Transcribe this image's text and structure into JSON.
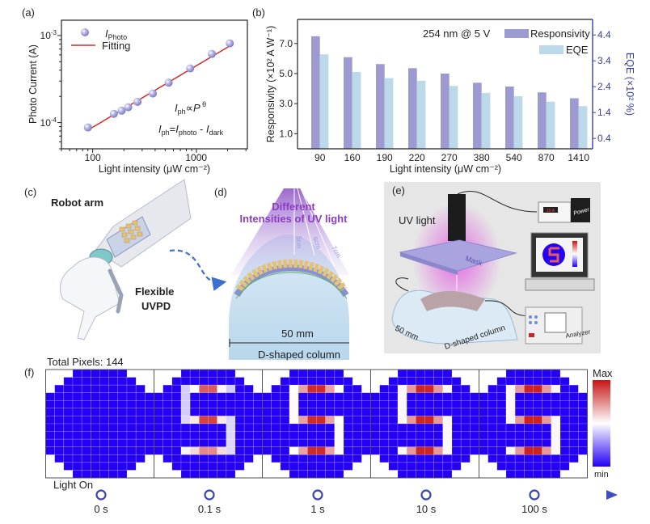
{
  "panel_labels": {
    "a": "(a)",
    "b": "(b)",
    "c": "(c)",
    "d": "(d)",
    "e": "(e)",
    "f": "(f)"
  },
  "colors": {
    "photo_marker": "#a9a6dc",
    "fit_line": "#d42a2a",
    "responsivity_bar": "#9d99d1",
    "eqe_bar": "#bcd9e9",
    "eqe_axis": "#3b3f9f",
    "heat_min": "#2400f5",
    "heat_mid": "#ffffff",
    "heat_max": "#c81414",
    "timeline": "#3b4fc0"
  },
  "chart_data": [
    {
      "id": "a",
      "type": "scatter",
      "xscale": "log",
      "yscale": "log",
      "xlabel": "Light intensity (μW cm⁻²)",
      "ylabel": "Photo Current (A)",
      "xlim": [
        50,
        3100
      ],
      "ylim": [
        5e-05,
        0.0015
      ],
      "x_ticks": [
        {
          "value": 100,
          "label": "100"
        },
        {
          "value": 1000,
          "label": "1000"
        }
      ],
      "y_ticks": [
        {
          "value": 0.001,
          "base": "10",
          "exp": "-3"
        },
        {
          "value": 0.0001,
          "base": "10",
          "exp": "-4"
        }
      ],
      "legend": {
        "position": "top-left",
        "photo": {
          "main": "I",
          "sub": "Photo"
        },
        "fit": "Fitting"
      },
      "series": [
        {
          "name": "IPhoto",
          "x": [
            90,
            160,
            190,
            220,
            270,
            380,
            540,
            870,
            1410,
            2100
          ],
          "y": [
            8.8e-05,
            0.000126,
            0.000137,
            0.00015,
            0.000173,
            0.000216,
            0.000287,
            0.000419,
            0.000615,
            0.000813
          ]
        },
        {
          "name": "Fitting",
          "x": [
            90,
            2100
          ],
          "y": [
            8.2e-05,
            0.00076
          ]
        }
      ],
      "annotations": {
        "power_law": [
          {
            "t": "I",
            "s": "n"
          },
          {
            "t": "ph",
            "s": "sub"
          },
          {
            "t": "∝",
            "s": "n"
          },
          {
            "t": "P",
            "s": "i"
          },
          {
            "t": " θ",
            "s": "sup"
          }
        ],
        "definition": [
          {
            "t": "I",
            "s": "i"
          },
          {
            "t": "ph",
            "s": "sub"
          },
          {
            "t": "=",
            "s": "n"
          },
          {
            "t": "I",
            "s": "i"
          },
          {
            "t": "photo",
            "s": "sub"
          },
          {
            "t": " - ",
            "s": "n"
          },
          {
            "t": "I",
            "s": "i"
          },
          {
            "t": "dark",
            "s": "sub"
          }
        ]
      },
      "grid": false
    },
    {
      "id": "b",
      "type": "bar",
      "categories": [
        "90",
        "160",
        "190",
        "220",
        "270",
        "380",
        "540",
        "870",
        "1410"
      ],
      "xlabel": "Light intensity (μW cm⁻²)",
      "ylabel": "Responsivity (×10² A W⁻¹)",
      "ylabel_right": "EQE (×10² %)",
      "ylim": [
        0,
        8.6
      ],
      "ylim_right": [
        0,
        5.0
      ],
      "y_ticks": [
        "1.0",
        "3.0",
        "5.0",
        "7.0"
      ],
      "y_ticks_right": [
        "0.4",
        "1.4",
        "2.4",
        "3.4",
        "4.4"
      ],
      "condition_label": "254 nm @ 5 V",
      "legend_position": "top-right",
      "series": [
        {
          "name": "Responsivity",
          "axis": "left",
          "values": [
            7.48,
            6.09,
            5.63,
            5.36,
            5.0,
            4.39,
            4.14,
            3.75,
            3.36
          ]
        },
        {
          "name": "EQE",
          "axis": "right",
          "values": [
            3.65,
            2.97,
            2.73,
            2.63,
            2.43,
            2.16,
            2.03,
            1.82,
            1.65
          ]
        }
      ],
      "grid": false
    },
    {
      "id": "f",
      "type": "heatmap",
      "title": "Total Pixels: 144",
      "columns": 12,
      "active_columns_per_row": [
        6,
        8,
        10,
        12,
        12,
        12,
        12,
        12,
        12,
        12,
        12,
        10,
        8,
        6
      ],
      "colorbar": {
        "max_label": "Max",
        "min_label": "min",
        "range": [
          0,
          1
        ]
      },
      "default_value": 0,
      "frames": [
        {
          "label": "0 s",
          "cells": []
        },
        {
          "label": "0.1 s",
          "cells": [
            [
              2,
              3,
              0.4
            ],
            [
              2,
              4,
              0.5
            ],
            [
              2,
              5,
              0.85
            ],
            [
              2,
              6,
              0.85
            ],
            [
              2,
              7,
              0.52
            ],
            [
              2,
              8,
              0.4
            ],
            [
              3,
              3,
              0.4
            ],
            [
              4,
              3,
              0.4
            ],
            [
              5,
              3,
              0.4
            ],
            [
              6,
              3,
              0.42
            ],
            [
              6,
              4,
              0.55
            ],
            [
              6,
              5,
              0.9
            ],
            [
              6,
              6,
              0.9
            ],
            [
              6,
              7,
              0.55
            ],
            [
              6,
              8,
              0.42
            ],
            [
              7,
              8,
              0.42
            ],
            [
              8,
              8,
              0.42
            ],
            [
              9,
              8,
              0.42
            ],
            [
              10,
              3,
              0.48
            ],
            [
              10,
              4,
              0.58
            ],
            [
              10,
              5,
              0.75
            ],
            [
              10,
              6,
              0.75
            ],
            [
              10,
              7,
              0.58
            ],
            [
              10,
              8,
              0.42
            ]
          ]
        },
        {
          "label": "1 s",
          "cells": [
            [
              2,
              3,
              0.5
            ],
            [
              2,
              4,
              0.7
            ],
            [
              2,
              5,
              0.95
            ],
            [
              2,
              6,
              0.95
            ],
            [
              2,
              7,
              0.7
            ],
            [
              2,
              8,
              0.5
            ],
            [
              3,
              3,
              0.51
            ],
            [
              4,
              3,
              0.51
            ],
            [
              5,
              3,
              0.51
            ],
            [
              6,
              3,
              0.51
            ],
            [
              6,
              4,
              0.7
            ],
            [
              6,
              5,
              0.95
            ],
            [
              6,
              6,
              0.95
            ],
            [
              6,
              7,
              0.7
            ],
            [
              6,
              8,
              0.5
            ],
            [
              7,
              8,
              0.51
            ],
            [
              8,
              8,
              0.51
            ],
            [
              9,
              8,
              0.51
            ],
            [
              10,
              3,
              0.5
            ],
            [
              10,
              4,
              0.7
            ],
            [
              10,
              5,
              0.95
            ],
            [
              10,
              6,
              0.95
            ],
            [
              10,
              7,
              0.7
            ],
            [
              10,
              8,
              0.51
            ]
          ]
        },
        {
          "label": "10 s",
          "cells": [
            [
              2,
              3,
              0.52
            ],
            [
              2,
              4,
              0.72
            ],
            [
              2,
              5,
              0.96
            ],
            [
              2,
              6,
              0.96
            ],
            [
              2,
              7,
              0.72
            ],
            [
              2,
              8,
              0.52
            ],
            [
              3,
              3,
              0.52
            ],
            [
              4,
              3,
              0.52
            ],
            [
              5,
              3,
              0.52
            ],
            [
              6,
              3,
              0.52
            ],
            [
              6,
              4,
              0.72
            ],
            [
              6,
              5,
              0.96
            ],
            [
              6,
              6,
              0.96
            ],
            [
              6,
              7,
              0.72
            ],
            [
              6,
              8,
              0.52
            ],
            [
              7,
              8,
              0.52
            ],
            [
              8,
              8,
              0.52
            ],
            [
              9,
              8,
              0.52
            ],
            [
              10,
              3,
              0.52
            ],
            [
              10,
              4,
              0.72
            ],
            [
              10,
              5,
              0.96
            ],
            [
              10,
              6,
              0.96
            ],
            [
              10,
              7,
              0.72
            ],
            [
              10,
              8,
              0.52
            ]
          ]
        },
        {
          "label": "100 s",
          "cells": [
            [
              2,
              3,
              0.52
            ],
            [
              2,
              4,
              0.72
            ],
            [
              2,
              5,
              0.97
            ],
            [
              2,
              6,
              0.97
            ],
            [
              2,
              7,
              0.72
            ],
            [
              2,
              8,
              0.52
            ],
            [
              3,
              3,
              0.52
            ],
            [
              4,
              3,
              0.52
            ],
            [
              5,
              3,
              0.52
            ],
            [
              6,
              3,
              0.52
            ],
            [
              6,
              4,
              0.72
            ],
            [
              6,
              5,
              0.97
            ],
            [
              6,
              6,
              0.97
            ],
            [
              6,
              7,
              0.72
            ],
            [
              6,
              8,
              0.52
            ],
            [
              7,
              8,
              0.52
            ],
            [
              8,
              8,
              0.52
            ],
            [
              9,
              8,
              0.52
            ],
            [
              10,
              3,
              0.52
            ],
            [
              10,
              4,
              0.72
            ],
            [
              10,
              5,
              0.97
            ],
            [
              10,
              6,
              0.97
            ],
            [
              10,
              7,
              0.72
            ],
            [
              10,
              8,
              0.52
            ]
          ]
        }
      ]
    }
  ],
  "panel_c": {
    "robot_arm": "Robot arm",
    "device_line1": "Flexible",
    "device_line2": "UVPD"
  },
  "panel_d": {
    "title_line1": "Different",
    "title_line2": "Intensities of UV light",
    "distances": [
      "5cm",
      "6cm",
      "7cm"
    ],
    "width_label": "50 mm",
    "column_label": "D-shaped column"
  },
  "panel_e": {
    "uv_light": "UV light",
    "mask": "Mask",
    "power": "Power",
    "power_display": "15 A",
    "analyzer": "Analyzer",
    "width_label": "50 mm",
    "column_label": "D-shaped column"
  },
  "timeline": {
    "start_label": "Light On",
    "times": [
      "0 s",
      "0.1 s",
      "1 s",
      "10 s",
      "100 s"
    ]
  }
}
